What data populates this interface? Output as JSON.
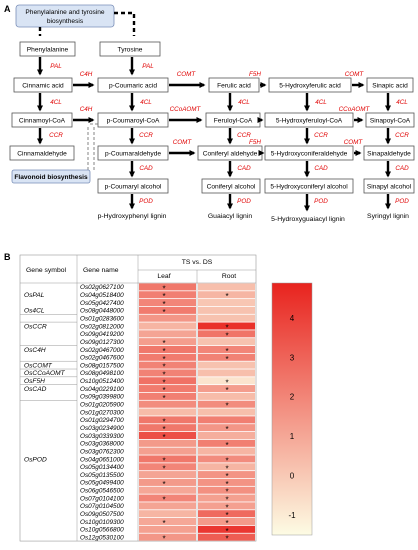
{
  "panel_a": {
    "label": "A",
    "top_box": "Phenylalanine and tyrosine\nbiosynthesis",
    "nodes": {
      "phe": "Phenylalanine",
      "tyr": "Tyrosine",
      "cinnamic": "Cinnamic acid",
      "pcoumaric": "p-Coumaric acid",
      "ferulic": "Ferulic acid",
      "hydroxyferulic": "5-Hydroxyferulic acid",
      "sinapic": "Sinapic acid",
      "cinnamoylcoa": "Cinnamoyl-CoA",
      "pcoumaroylcoa": "p-Coumaroyl-CoA",
      "feruloylcoa": "Feruloyl-CoA",
      "hydroxyferuloylcoa": "5-Hydroxyferuloyl-CoA",
      "sinapoylcoa": "Sinapoyl-CoA",
      "cinnamaldehyde": "Cinnamaldehyde",
      "pcoumaraldehyde": "p-Coumaraldehyde",
      "coniferylaldehyde": "Coniferyl aldehyde",
      "hydroxyconiferaldehyde": "5-Hydroxyconiferaldehyde",
      "sinapaldehyde": "Sinapaldehyde",
      "flavonoid": "Flavonoid biosynthesis",
      "pcoumaryl": "p-Coumaryl alcohol",
      "coniferylalc": "Coniferyl alcohol",
      "hydroxyconiferylalc": "5-Hydroxyconiferyl alcohol",
      "sinapylalc": "Sinapyl alcohol"
    },
    "lignins": {
      "h": "p-Hydroxyphenyl lignin",
      "g": "Guaiacyl lignin",
      "fivehg": "5-Hydroxyguaiacyl lignin",
      "s": "Syringyl lignin"
    },
    "enzymes": {
      "pal1": "PAL",
      "pal2": "PAL",
      "c4h1": "C4H",
      "c4h2": "C4H",
      "fourcl1": "4CL",
      "fourcl2": "4CL",
      "fourcl3": "4CL",
      "fourcl4": "4CL",
      "fourcl5": "4CL",
      "comt1": "COMT",
      "comt2": "COMT",
      "comt3": "COMT",
      "comt4": "COMT",
      "f5h1": "F5H",
      "f5h2": "F5H",
      "f5h3": "F5H",
      "ccoaomt1": "CCoAOMT",
      "ccoaomt2": "CCoAOMT",
      "ccr1": "CCR",
      "ccr2": "CCR",
      "ccr3": "CCR",
      "ccr4": "CCR",
      "ccr5": "CCR",
      "cad1": "CAD",
      "cad2": "CAD",
      "cad3": "CAD",
      "cad4": "CAD",
      "pod1": "POD",
      "pod2": "POD",
      "pod3": "POD",
      "pod4": "POD"
    }
  },
  "panel_b": {
    "label": "B",
    "header": {
      "symbol": "Gene symbol",
      "name": "Gene name",
      "group": "TS vs. DS",
      "leaf": "Leaf",
      "root": "Root"
    },
    "colors": {
      "high": "#e8231e",
      "low": "#fdfce4"
    },
    "colorbar_ticks": [
      "4",
      "3",
      "2",
      "1",
      "0",
      "-1"
    ],
    "rows": [
      {
        "symbol": "",
        "gene": "Os02g0627100",
        "leaf": 2.4,
        "root": 0.3,
        "leaf_star": "*",
        "root_star": ""
      },
      {
        "symbol": "OsPAL",
        "gene": "Os04g0518400",
        "leaf": 2.2,
        "root": 0.6,
        "leaf_star": "*",
        "root_star": "*"
      },
      {
        "symbol": "",
        "gene": "Os05g0427400",
        "leaf": 2.0,
        "root": 0.1,
        "leaf_star": "*",
        "root_star": ""
      },
      {
        "symbol": "Os4CL",
        "gene": "Os08g0448000",
        "leaf": 2.3,
        "root": 0.2,
        "leaf_star": "*",
        "root_star": ""
      },
      {
        "symbol": "",
        "gene": "Os01g0283600",
        "leaf": 1.5,
        "root": 0.2,
        "leaf_star": "",
        "root_star": ""
      },
      {
        "symbol": "OsCCR",
        "gene": "Os02g0812000",
        "leaf": 0.6,
        "root": 4.5,
        "leaf_star": "",
        "root_star": "*"
      },
      {
        "symbol": "",
        "gene": "Os09g0419200",
        "leaf": 1.1,
        "root": 2.5,
        "leaf_star": "",
        "root_star": "*"
      },
      {
        "symbol": "",
        "gene": "Os09g0127300",
        "leaf": 1.3,
        "root": 0.2,
        "leaf_star": "*",
        "root_star": ""
      },
      {
        "symbol": "OsC4H",
        "gene": "Os02g0467000",
        "leaf": 2.4,
        "root": 2.0,
        "leaf_star": "*",
        "root_star": "*"
      },
      {
        "symbol": "",
        "gene": "Os02g0467600",
        "leaf": 2.3,
        "root": 2.1,
        "leaf_star": "*",
        "root_star": "*"
      },
      {
        "symbol": "OsCOMT",
        "gene": "Os08g0157500",
        "leaf": 2.1,
        "root": 0.2,
        "leaf_star": "*",
        "root_star": ""
      },
      {
        "symbol": "OsCCoAOMT",
        "gene": "Os08g0498100",
        "leaf": 2.1,
        "root": 0.3,
        "leaf_star": "*",
        "root_star": ""
      },
      {
        "symbol": "OsF5H",
        "gene": "Os10g0512400",
        "leaf": 2.6,
        "root": -0.8,
        "leaf_star": "*",
        "root_star": "*"
      },
      {
        "symbol": "OsCAD",
        "gene": "Os04g0229100",
        "leaf": 2.3,
        "root": 1.3,
        "leaf_star": "*",
        "root_star": "*"
      },
      {
        "symbol": "",
        "gene": "Os09g0399800",
        "leaf": 2.2,
        "root": 0.4,
        "leaf_star": "*",
        "root_star": ""
      },
      {
        "symbol": "",
        "gene": "Os01g0205900",
        "leaf": 1.8,
        "root": 1.8,
        "leaf_star": "",
        "root_star": "*"
      },
      {
        "symbol": "",
        "gene": "Os01g0270300",
        "leaf": 0.4,
        "root": 0.3,
        "leaf_star": "",
        "root_star": ""
      },
      {
        "symbol": "",
        "gene": "Os01g0294700",
        "leaf": 2.4,
        "root": 2.2,
        "leaf_star": "*",
        "root_star": ""
      },
      {
        "symbol": "",
        "gene": "Os03g0234900",
        "leaf": 2.4,
        "root": 1.5,
        "leaf_star": "*",
        "root_star": "*"
      },
      {
        "symbol": "",
        "gene": "Os03g0339300",
        "leaf": 3.6,
        "root": 0.8,
        "leaf_star": "*",
        "root_star": ""
      },
      {
        "symbol": "",
        "gene": "Os03g0368000",
        "leaf": 1.4,
        "root": 2.2,
        "leaf_star": "",
        "root_star": "*"
      },
      {
        "symbol": "",
        "gene": "Os03g0762300",
        "leaf": 1.2,
        "root": 0.6,
        "leaf_star": "",
        "root_star": ""
      },
      {
        "symbol": "OsPOD",
        "gene": "Os04g0651000",
        "leaf": 2.4,
        "root": 1.8,
        "leaf_star": "*",
        "root_star": "*"
      },
      {
        "symbol": "",
        "gene": "Os05g0134400",
        "leaf": 2.0,
        "root": 0.6,
        "leaf_star": "*",
        "root_star": "*"
      },
      {
        "symbol": "",
        "gene": "Os05g0135500",
        "leaf": 1.1,
        "root": 1.6,
        "leaf_star": "",
        "root_star": "*"
      },
      {
        "symbol": "",
        "gene": "Os05g0499400",
        "leaf": 1.4,
        "root": 1.6,
        "leaf_star": "*",
        "root_star": "*"
      },
      {
        "symbol": "",
        "gene": "Os06g0546500",
        "leaf": 1.0,
        "root": 1.7,
        "leaf_star": "",
        "root_star": "*"
      },
      {
        "symbol": "",
        "gene": "Os07g0104100",
        "leaf": 2.0,
        "root": 1.2,
        "leaf_star": "*",
        "root_star": "*"
      },
      {
        "symbol": "",
        "gene": "Os07g0104500",
        "leaf": 1.1,
        "root": 1.2,
        "leaf_star": "",
        "root_star": "*"
      },
      {
        "symbol": "",
        "gene": "Os09g0507500",
        "leaf": 0.6,
        "root": 2.8,
        "leaf_star": "",
        "root_star": "*"
      },
      {
        "symbol": "",
        "gene": "Os10g0109300",
        "leaf": 1.0,
        "root": 1.4,
        "leaf_star": "*",
        "root_star": "*"
      },
      {
        "symbol": "",
        "gene": "Os10g0566800",
        "leaf": 1.2,
        "root": 4.3,
        "leaf_star": "",
        "root_star": "*"
      },
      {
        "symbol": "",
        "gene": "Os12g0530100",
        "leaf": 1.5,
        "root": 3.2,
        "leaf_star": "*",
        "root_star": "*"
      }
    ]
  },
  "chart_data": {
    "type": "heatmap",
    "title": "TS vs. DS",
    "columns": [
      "Leaf",
      "Root"
    ],
    "colorbar_range": [
      -1.5,
      4.9
    ],
    "colorbar_ticks": [
      4,
      3,
      2,
      1,
      0,
      -1
    ]
  }
}
